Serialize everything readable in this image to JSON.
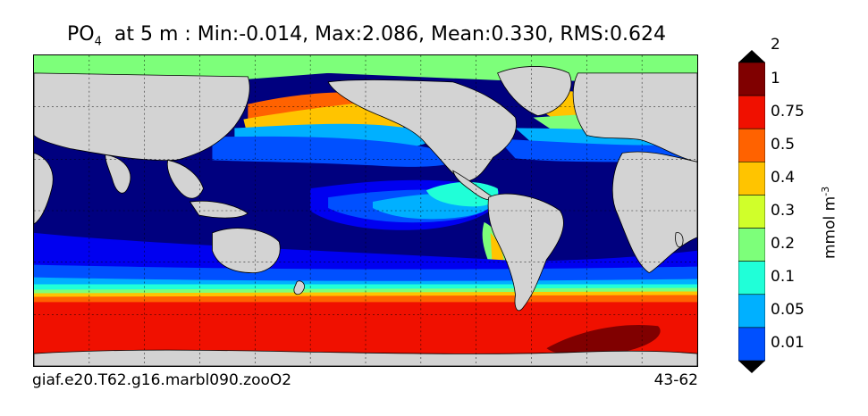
{
  "title": {
    "var": "PO",
    "sub": "4",
    "rest": "  at 5 m : Min:-0.014, Max:2.086, Mean:0.330, RMS:0.624"
  },
  "footer": {
    "run_id": "giaf.e20.T62.g16.marbl090.zooO2",
    "years": "43-62"
  },
  "colorbar": {
    "unit": "mmol m",
    "unit_exp": "-3",
    "levels": [
      "0.01",
      "0.05",
      "0.1",
      "0.2",
      "0.3",
      "0.4",
      "0.5",
      "0.75",
      "1",
      "2"
    ],
    "colors": [
      "#00007f",
      "#0000f0",
      "#0050ff",
      "#00b0ff",
      "#20ffd8",
      "#7dff7a",
      "#d0ff2a",
      "#ffc400",
      "#ff6200",
      "#f01000",
      "#800000"
    ]
  },
  "map": {
    "land_color": "#d3d3d3"
  }
}
